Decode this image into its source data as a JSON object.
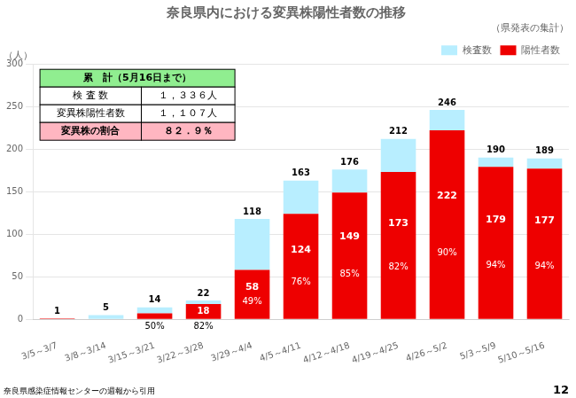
{
  "chart_data": {
    "type": "bar",
    "title": "奈良県内における変異株陽性者数の推移",
    "subtitle": "（県発表の集計）",
    "ylabel": "（人）",
    "source": "奈良県感染症情報センターの週報から引用",
    "page_number": "12",
    "categories": [
      "3/5～3/7",
      "3/8～3/14",
      "3/15～3/21",
      "3/22～3/28",
      "3/29～4/4",
      "4/5～4/11",
      "4/12～4/18",
      "4/19～4/25",
      "4/26～5/2",
      "5/3～5/9",
      "5/10～5/16"
    ],
    "series": [
      {
        "name": "陽性者数",
        "color": "#EE0000",
        "values": [
          1,
          0,
          7,
          18,
          58,
          124,
          149,
          173,
          222,
          179,
          177
        ],
        "value_labels": [
          null,
          null,
          null,
          "18",
          "58",
          "124",
          "149",
          "173",
          "222",
          "179",
          "177"
        ]
      },
      {
        "name": "検査数",
        "color": "#B8EEFF",
        "values": [
          0,
          5,
          7,
          4,
          60,
          39,
          27,
          39,
          24,
          11,
          12
        ]
      }
    ],
    "totals": [
      1,
      5,
      14,
      22,
      118,
      163,
      176,
      212,
      246,
      190,
      189
    ],
    "percentages": [
      null,
      null,
      50,
      82,
      49,
      76,
      85,
      82,
      90,
      94,
      94
    ],
    "percentage_labels": [
      null,
      null,
      "50%",
      "82%",
      "49%",
      "76%",
      "85%",
      "82%",
      "90%",
      "94%",
      "94%"
    ],
    "table": {
      "title": "累　計（5月16日まで）",
      "color": "#90EE90",
      "rows": [
        {
          "cells": [
            "検 査 数",
            "１，３３６人"
          ]
        },
        {
          "cells": [
            "変異株陽性者数",
            "１，１０７人"
          ]
        },
        {
          "cells": [
            "変異株の割合",
            "８２．９％"
          ],
          "color": "#FFB6C1"
        }
      ]
    },
    "stacked": true,
    "ylim": [
      0,
      300
    ],
    "yticks": [
      0,
      50,
      100,
      150,
      200,
      250,
      300
    ],
    "grid": true,
    "legend": "upper right"
  }
}
